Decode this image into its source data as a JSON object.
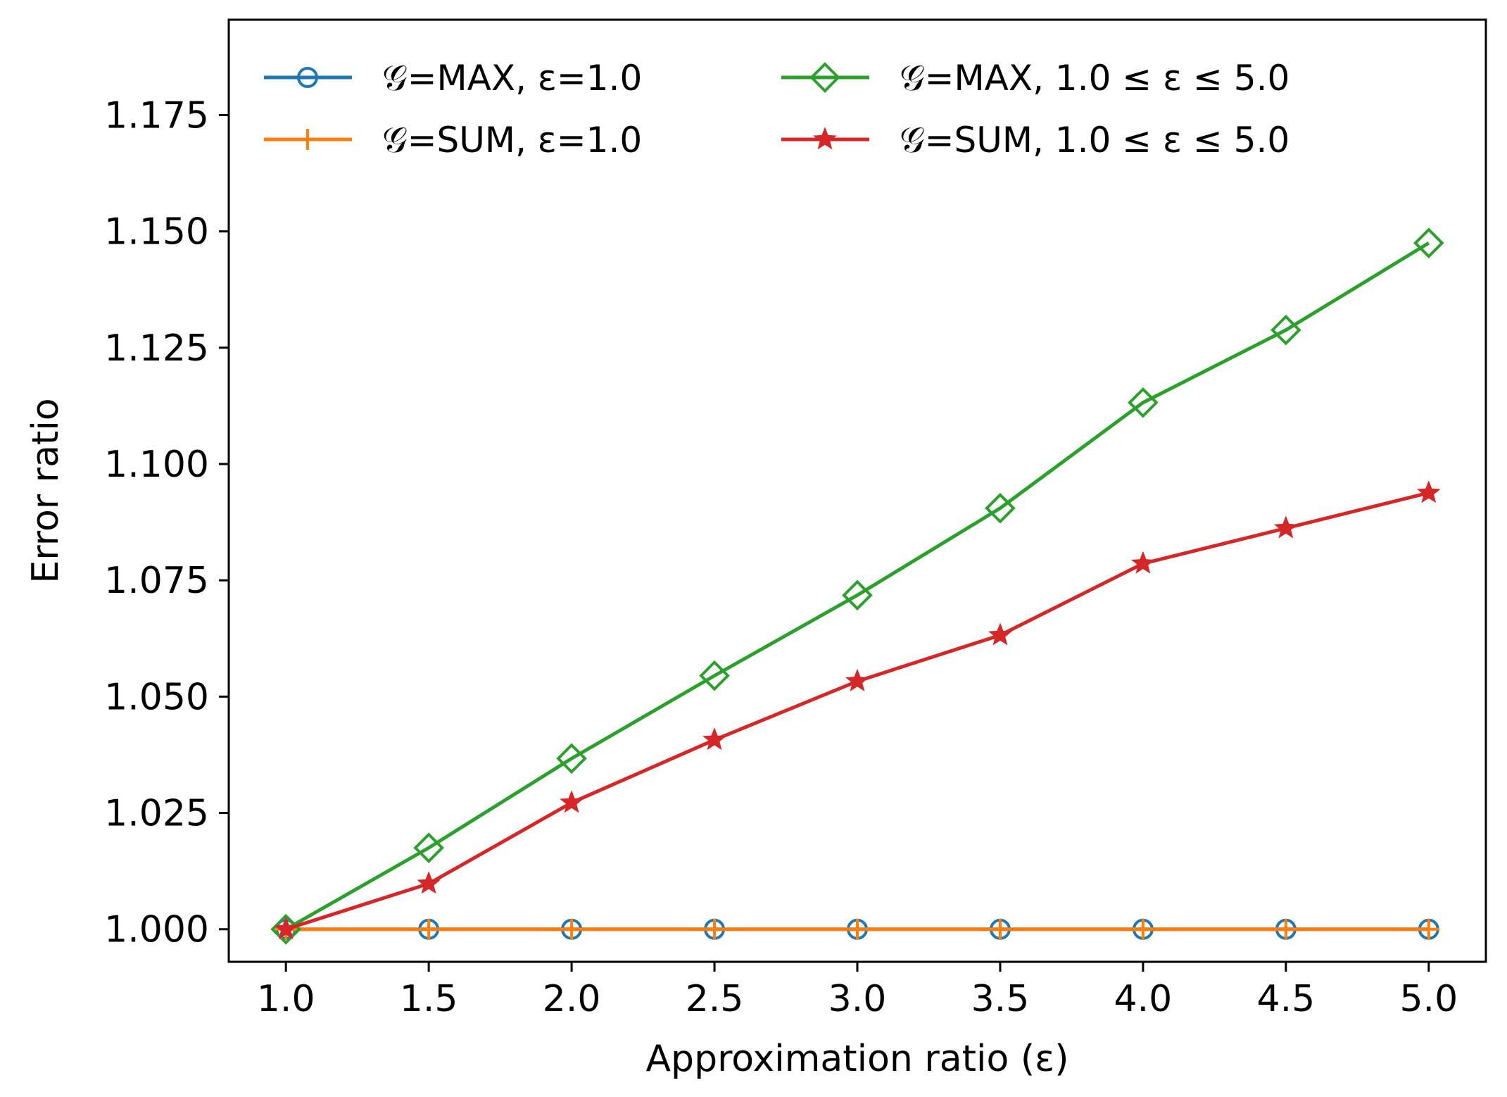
{
  "chart_data": {
    "type": "line",
    "title": "",
    "xlabel": "Approximation ratio (ε)",
    "ylabel": "Error ratio",
    "x": [
      1.0,
      1.5,
      2.0,
      2.5,
      3.0,
      3.5,
      4.0,
      4.5,
      5.0
    ],
    "xlim": [
      0.8,
      5.2
    ],
    "ylim": [
      0.993,
      1.1955
    ],
    "xticks": [
      1.0,
      1.5,
      2.0,
      2.5,
      3.0,
      3.5,
      4.0,
      4.5,
      5.0
    ],
    "xtick_labels": [
      "1.0",
      "1.5",
      "2.0",
      "2.5",
      "3.0",
      "3.5",
      "4.0",
      "4.5",
      "5.0"
    ],
    "yticks": [
      1.0,
      1.025,
      1.05,
      1.075,
      1.1,
      1.125,
      1.15,
      1.175
    ],
    "ytick_labels": [
      "1.000",
      "1.025",
      "1.050",
      "1.075",
      "1.100",
      "1.125",
      "1.150",
      "1.175"
    ],
    "grid": false,
    "legend_position": "top-left",
    "series": [
      {
        "name": "𝒢=MAX, ε=1.0",
        "color": "#1f77b4",
        "marker": "circle",
        "values": [
          1.0,
          1.0,
          1.0,
          1.0,
          1.0,
          1.0,
          1.0,
          1.0,
          1.0
        ]
      },
      {
        "name": "𝒢=SUM, ε=1.0",
        "color": "#ff7f0e",
        "marker": "plus",
        "values": [
          1.0,
          1.0,
          1.0,
          1.0,
          1.0,
          1.0,
          1.0,
          1.0,
          1.0
        ]
      },
      {
        "name": "𝒢=MAX, 1.0 ≤ ε ≤ 5.0",
        "color": "#2ca02c",
        "marker": "diamond",
        "values": [
          1.0,
          1.0175,
          1.0367,
          1.0545,
          1.0718,
          1.0905,
          1.1132,
          1.1288,
          1.1475
        ]
      },
      {
        "name": "𝒢=SUM, 1.0 ≤ ε ≤ 5.0",
        "color": "#d62728",
        "marker": "star",
        "values": [
          1.0,
          1.0098,
          1.0272,
          1.0407,
          1.0533,
          1.0632,
          1.0786,
          1.0862,
          1.0938
        ]
      }
    ]
  }
}
